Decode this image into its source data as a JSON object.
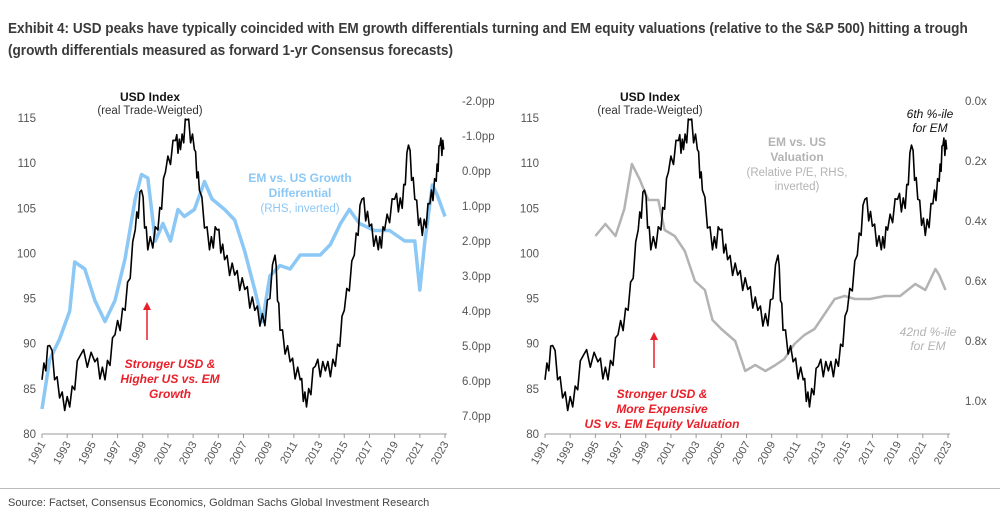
{
  "title": "Exhibit 4: USD peaks have typically coincided with EM growth differentials turning and EM equity valuations (relative to the S&P 500) hitting a trough (growth differentials measured as forward 1-yr Consensus forecasts)",
  "source": "Source: Factset, Consensus Economics, Goldman Sachs Global Investment Research",
  "colors": {
    "usd": "#000000",
    "growth": "#8cc8f5",
    "valuation": "#b3b3b3",
    "annotation": "#e8202a"
  },
  "chart_data": [
    {
      "type": "line",
      "xlabel": "",
      "xlim": [
        1991,
        2023
      ],
      "x_ticks": [
        "1991",
        "1993",
        "1995",
        "1997",
        "1999",
        "2001",
        "2003",
        "2005",
        "2007",
        "2009",
        "2011",
        "2013",
        "2015",
        "2017",
        "2019",
        "2021",
        "2023"
      ],
      "ylim": [
        80,
        115
      ],
      "y_ticks": [
        "80",
        "85",
        "90",
        "95",
        "100",
        "105",
        "110",
        "115"
      ],
      "y2lim": [
        -2.0,
        7.0
      ],
      "y2_inverted": true,
      "y2_ticks": [
        "-2.0pp",
        "-1.0pp",
        "0.0pp",
        "1.0pp",
        "2.0pp",
        "3.0pp",
        "4.0pp",
        "5.0pp",
        "6.0pp",
        "7.0pp"
      ],
      "usd_label": {
        "title": "USD Index",
        "subtitle": "(real Trade-Weigted)"
      },
      "growth_label": {
        "l1": "EM vs. US Growth",
        "l2": "Differential",
        "l3": "(RHS, inverted)"
      },
      "annotation": {
        "l1": "Stronger USD &",
        "l2": "Higher US vs. EM",
        "l3": "Growth"
      },
      "series": [
        {
          "name": "USD Index (real Trade-Weigted)",
          "axis": "left",
          "x": [
            1991,
            1991.6,
            1992.4,
            1993.2,
            1994,
            1995.2,
            1996,
            1996.8,
            1997.6,
            1998.4,
            1998.9,
            1999.4,
            2000.2,
            2000.8,
            2001.6,
            2002,
            2002.5,
            2003.1,
            2003.5,
            2004.3,
            2004.9,
            2005.5,
            2006.3,
            2007.1,
            2007.9,
            2008.7,
            2009.5,
            2009.9,
            2010.7,
            2011.5,
            2012,
            2012.7,
            2013.5,
            2014.3,
            2015,
            2015.8,
            2016.4,
            2017,
            2017.7,
            2018.2,
            2019,
            2019.6,
            2020.1,
            2020.6,
            2021.2,
            2021.8,
            2022.3,
            2022.6,
            2022.9
          ],
          "y": [
            86,
            89.8,
            84,
            83,
            88.6,
            88,
            86,
            91,
            93.7,
            102.6,
            107,
            100.4,
            102.6,
            109,
            112.5,
            111.5,
            114.8,
            111.5,
            107,
            100.4,
            102.6,
            99.3,
            97.6,
            96,
            93.7,
            92,
            99.8,
            91.5,
            88,
            86,
            83,
            87.5,
            87,
            87.5,
            93.7,
            99.8,
            106,
            103,
            100.4,
            102.6,
            106,
            105,
            112,
            106,
            102,
            105.5,
            108,
            112,
            111.5
          ]
        },
        {
          "name": "EM vs. US Growth Differential (RHS, inverted)",
          "axis": "right",
          "x": [
            1991,
            1991.6,
            1992.4,
            1993.2,
            1993.6,
            1994.4,
            1995.2,
            1996,
            1996.8,
            1997.6,
            1998.4,
            1998.9,
            1999.4,
            2000,
            2000.6,
            2001.2,
            2001.8,
            2002.3,
            2003.1,
            2003.9,
            2004.5,
            2005.5,
            2006.3,
            2007.1,
            2007.9,
            2008.5,
            2009.1,
            2009.9,
            2010.7,
            2011.5,
            2012.3,
            2013.1,
            2013.9,
            2014.7,
            2015.4,
            2016.2,
            2017.4,
            2018.6,
            2019.8,
            2020.6,
            2021,
            2021.4,
            2022,
            2022.4,
            2023
          ],
          "y": [
            6.8,
            5.4,
            4.8,
            4.0,
            2.6,
            2.8,
            3.7,
            4.3,
            3.7,
            2.5,
            0.8,
            0.1,
            0.2,
            2.0,
            1.5,
            2.0,
            1.1,
            1.3,
            1.1,
            0.3,
            0.8,
            1.1,
            1.4,
            2.3,
            3.4,
            4.3,
            3.0,
            2.7,
            2.8,
            2.4,
            2.4,
            2.4,
            2.1,
            1.5,
            1.1,
            1.5,
            1.7,
            1.7,
            2.0,
            2.0,
            3.4,
            2.0,
            0.4,
            0.7,
            1.3
          ]
        }
      ]
    },
    {
      "type": "line",
      "xlabel": "",
      "xlim": [
        1991,
        2023
      ],
      "x_ticks": [
        "1991",
        "1993",
        "1995",
        "1997",
        "1999",
        "2001",
        "2003",
        "2005",
        "2007",
        "2009",
        "2011",
        "2013",
        "2015",
        "2017",
        "2019",
        "2021",
        "2023"
      ],
      "ylim": [
        80,
        115
      ],
      "y_ticks": [
        "80",
        "85",
        "90",
        "95",
        "100",
        "105",
        "110",
        "115"
      ],
      "y2lim": [
        0.0,
        1.0
      ],
      "y2_inverted": true,
      "y2_ticks": [
        "0.0x",
        "0.2x",
        "0.4x",
        "0.6x",
        "0.8x",
        "1.0x"
      ],
      "usd_label": {
        "title": "USD Index",
        "subtitle": "(real Trade-Weigted)"
      },
      "valuation_label": {
        "l1": "EM vs. US",
        "l2": "Valuation",
        "l3": "(Relative P/E, RHS,",
        "l4": "inverted)"
      },
      "pct_high": {
        "l1": "6th %-ile",
        "l2": "for EM"
      },
      "pct_low": {
        "l1": "42nd %-ile",
        "l2": "for EM"
      },
      "annotation": {
        "l1": "Stronger USD &",
        "l2": "More Expensive",
        "l3": "US vs. EM Equity Valuation"
      },
      "series": [
        {
          "name": "USD Index (real Trade-Weigted)",
          "axis": "left",
          "same_as": "chart 1 USD Index"
        },
        {
          "name": "EM vs. US Valuation (Relative P/E, RHS, inverted)",
          "axis": "right",
          "x": [
            1995,
            1995.8,
            1996.6,
            1997.3,
            1997.9,
            1998.5,
            1999.2,
            2000,
            2000.5,
            2001.3,
            2002.1,
            2002.9,
            2003.7,
            2004.3,
            2005,
            2006.1,
            2006.9,
            2007.7,
            2008.5,
            2009.3,
            2010,
            2010.8,
            2011.6,
            2012.4,
            2013.2,
            2014,
            2014.8,
            2015.6,
            2016.8,
            2018,
            2019.2,
            2020.4,
            2021.2,
            2022,
            2022.3,
            2022.8
          ],
          "y": [
            0.45,
            0.41,
            0.45,
            0.36,
            0.21,
            0.26,
            0.33,
            0.33,
            0.43,
            0.45,
            0.5,
            0.6,
            0.63,
            0.73,
            0.76,
            0.8,
            0.9,
            0.88,
            0.9,
            0.88,
            0.86,
            0.81,
            0.78,
            0.76,
            0.71,
            0.66,
            0.65,
            0.66,
            0.66,
            0.65,
            0.65,
            0.61,
            0.63,
            0.56,
            0.58,
            0.63
          ]
        }
      ]
    }
  ]
}
